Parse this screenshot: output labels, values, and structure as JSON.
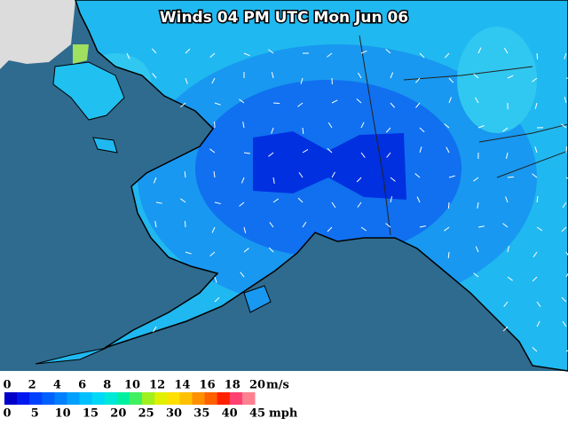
{
  "title": "Winds 04 PM UTC Mon Jun 06",
  "legend": {
    "colors": [
      "#0000c8",
      "#0018f0",
      "#0040ff",
      "#0060ff",
      "#0080ff",
      "#00a0ff",
      "#00c0ff",
      "#00d8f8",
      "#00e8d8",
      "#00f0a0",
      "#40f060",
      "#a0f020",
      "#e0f000",
      "#ffe000",
      "#ffc000",
      "#ff9000",
      "#ff6000",
      "#ff2000",
      "#ff4070",
      "#ff8090"
    ],
    "ms_labels": [
      "0",
      "2",
      "4",
      "6",
      "8",
      "10",
      "12",
      "14",
      "16",
      "18",
      "20"
    ],
    "ms_unit": "m/s",
    "mph_labels": [
      "0",
      "5",
      "10",
      "15",
      "20",
      "25",
      "30",
      "35",
      "40",
      "45"
    ],
    "mph_unit": "mph"
  }
}
